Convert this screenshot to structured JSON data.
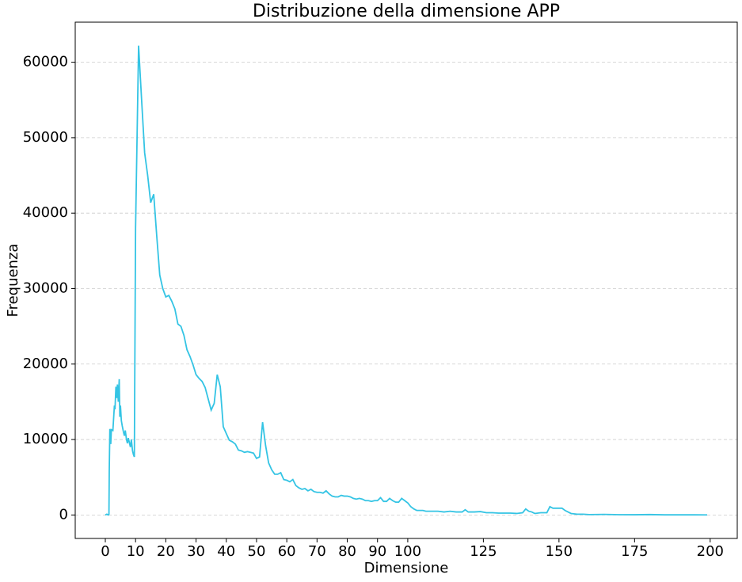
{
  "chart_data": {
    "type": "line",
    "title": "Distribuzione della dimensione APP",
    "x_label": "Dimensione",
    "y_label": "Frequenza",
    "x": [
      0,
      0.5,
      1,
      1.2,
      1.3,
      1.5,
      1.8,
      2,
      2.5,
      3,
      3.2,
      3.5,
      3.8,
      4,
      4.3,
      4.6,
      4.8,
      5,
      5.3,
      5.6,
      6,
      6.3,
      6.6,
      7,
      7.3,
      7.6,
      8,
      8.3,
      8.6,
      9,
      9.3,
      9.6,
      10,
      11,
      12,
      13,
      14,
      15,
      16,
      17,
      18,
      19,
      20,
      21,
      22,
      23,
      24,
      25,
      26,
      27,
      28,
      29,
      30,
      31,
      32,
      33,
      34,
      35,
      36,
      37,
      38,
      39,
      40,
      41,
      42,
      43,
      44,
      45,
      46,
      47,
      48,
      49,
      50,
      51,
      52,
      53,
      54,
      55,
      56,
      57,
      58,
      59,
      60,
      61,
      62,
      63,
      64,
      65,
      66,
      67,
      68,
      69,
      70,
      71,
      72,
      73,
      74,
      75,
      76,
      77,
      78,
      79,
      80,
      81,
      82,
      83,
      84,
      85,
      86,
      87,
      88,
      89,
      90,
      91,
      92,
      93,
      94,
      95,
      96,
      97,
      98,
      99,
      100,
      101,
      102,
      103,
      104,
      105,
      106,
      107,
      108,
      110,
      112,
      114,
      116,
      118,
      119,
      120,
      122,
      124,
      126,
      128,
      130,
      132,
      134,
      136,
      138,
      139,
      140,
      141,
      142,
      144,
      146,
      147,
      148,
      150,
      151,
      152,
      153,
      154,
      156,
      158,
      160,
      165,
      170,
      175,
      180,
      185,
      190,
      195,
      199
    ],
    "values": [
      0,
      100,
      0,
      100,
      5800,
      11400,
      9400,
      11300,
      11200,
      14500,
      14000,
      17000,
      15500,
      17300,
      15000,
      18000,
      13000,
      14500,
      12500,
      11800,
      11000,
      10500,
      11200,
      10000,
      9500,
      10200,
      9500,
      9000,
      10000,
      8500,
      8000,
      7700,
      38000,
      62200,
      55000,
      48000,
      45000,
      41400,
      42500,
      37000,
      31800,
      30000,
      28900,
      29100,
      28300,
      27300,
      25300,
      25000,
      23800,
      21900,
      21000,
      19900,
      18600,
      18100,
      17700,
      16900,
      15400,
      13900,
      14800,
      18600,
      17000,
      11700,
      10800,
      9900,
      9700,
      9400,
      8600,
      8500,
      8300,
      8400,
      8300,
      8200,
      7500,
      7700,
      12300,
      9200,
      6900,
      6000,
      5400,
      5400,
      5600,
      4700,
      4600,
      4400,
      4700,
      3900,
      3600,
      3400,
      3500,
      3200,
      3400,
      3100,
      3000,
      3000,
      2900,
      3200,
      2800,
      2500,
      2400,
      2400,
      2600,
      2500,
      2500,
      2400,
      2200,
      2100,
      2200,
      2100,
      1900,
      1900,
      1800,
      1900,
      1900,
      2300,
      1800,
      1800,
      2200,
      1900,
      1700,
      1700,
      2200,
      1900,
      1600,
      1100,
      800,
      600,
      600,
      600,
      500,
      500,
      500,
      500,
      400,
      500,
      400,
      400,
      700,
      400,
      400,
      450,
      300,
      300,
      250,
      250,
      250,
      200,
      300,
      800,
      500,
      400,
      200,
      300,
      300,
      1100,
      900,
      900,
      900,
      600,
      400,
      200,
      100,
      100,
      50,
      80,
      40,
      30,
      60,
      20,
      20,
      20,
      10
    ],
    "color": "#34c4e4",
    "xlim": [
      -9.95,
      208.95
    ],
    "ylim": [
      -3110,
      65310
    ],
    "xticks": [
      0,
      10,
      20,
      30,
      40,
      50,
      60,
      70,
      80,
      90,
      100,
      125,
      150,
      175,
      200
    ],
    "yticks": [
      0,
      10000,
      20000,
      30000,
      40000,
      50000,
      60000
    ],
    "grid": true
  }
}
